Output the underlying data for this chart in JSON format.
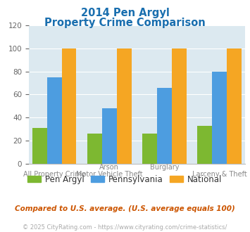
{
  "title_line1": "2014 Pen Argyl",
  "title_line2": "Property Crime Comparison",
  "pen_argyl": [
    31,
    26,
    26,
    33
  ],
  "pennsylvania": [
    75,
    48,
    66,
    80
  ],
  "national": [
    100,
    100,
    100,
    100
  ],
  "colors": {
    "pen_argyl": "#7db831",
    "pennsylvania": "#4d9de0",
    "national": "#f5a623"
  },
  "ylim": [
    0,
    120
  ],
  "yticks": [
    0,
    20,
    40,
    60,
    80,
    100,
    120
  ],
  "title_color": "#1a6faf",
  "plot_bg": "#dce9f0",
  "top_labels": [
    [
      "Arson",
      1
    ],
    [
      "Burglary",
      2
    ]
  ],
  "bot_labels": [
    [
      "All Property Crime",
      0
    ],
    [
      "Motor Vehicle Theft",
      1
    ],
    [
      "Larceny & Theft",
      3
    ]
  ],
  "footnote": "Compared to U.S. average. (U.S. average equals 100)",
  "copyright": "© 2025 CityRating.com - https://www.cityrating.com/crime-statistics/",
  "legend_labels": [
    "Pen Argyl",
    "Pennsylvania",
    "National"
  ],
  "copyright_link_color": "#4d9de0",
  "footnote_color": "#cc5500"
}
